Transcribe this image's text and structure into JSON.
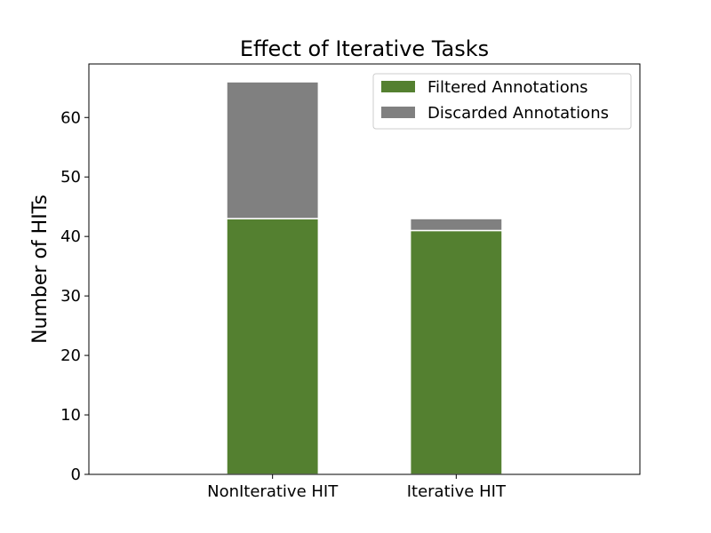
{
  "chart_data": {
    "type": "bar",
    "stacked": true,
    "title": "Effect of Iterative Tasks",
    "xlabel": "",
    "ylabel": "Number of HITs",
    "categories": [
      "NonIterative HIT",
      "Iterative HIT"
    ],
    "series": [
      {
        "name": "Filtered Annotations",
        "values": [
          43,
          41
        ],
        "color": "#548030"
      },
      {
        "name": "Discarded Annotations",
        "values": [
          23,
          2
        ],
        "color": "#808080"
      }
    ],
    "ylim": [
      0,
      69
    ],
    "yticks": [
      0,
      10,
      20,
      30,
      40,
      50,
      60
    ],
    "grid": false,
    "legend_position": "top-right"
  }
}
